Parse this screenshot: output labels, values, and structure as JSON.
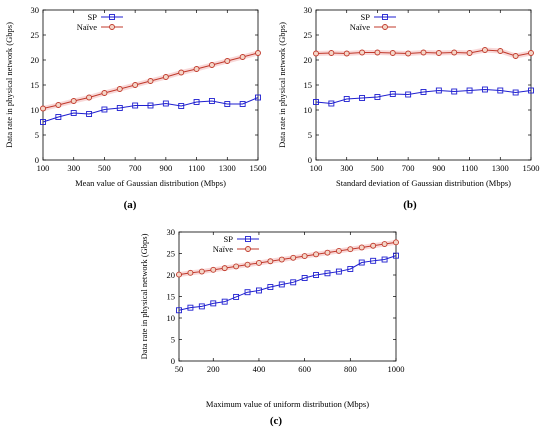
{
  "chart_data": [
    {
      "type": "line",
      "panel_label": "(a)",
      "xlabel": "Mean value of Gaussian distribution (Mbps)",
      "ylabel": "Data rate in physical network (Gbps)",
      "xlim": [
        100,
        1500
      ],
      "ylim": [
        0,
        30
      ],
      "x_ticks": [
        "100",
        "300",
        "500",
        "700",
        "900",
        "1100",
        "1300",
        "1500"
      ],
      "y_ticks": [
        "0",
        "5",
        "10",
        "15",
        "20",
        "25",
        "30"
      ],
      "legend": "top-left",
      "grid": false,
      "x": [
        100,
        200,
        300,
        400,
        500,
        600,
        700,
        800,
        900,
        1000,
        1100,
        1200,
        1300,
        1400,
        1500
      ],
      "series": [
        {
          "name": "SP",
          "color": "#1f1fd0",
          "marker": "square",
          "values": [
            7.6,
            8.6,
            9.4,
            9.2,
            10.1,
            10.4,
            10.9,
            10.9,
            11.3,
            10.8,
            11.6,
            11.8,
            11.2,
            11.2,
            12.5
          ]
        },
        {
          "name": "Naïve",
          "color": "#c0392b",
          "marker": "circle",
          "values": [
            10.3,
            11.0,
            11.8,
            12.5,
            13.4,
            14.2,
            15.0,
            15.8,
            16.6,
            17.5,
            18.2,
            19.0,
            19.8,
            20.6,
            21.4
          ]
        }
      ]
    },
    {
      "type": "line",
      "panel_label": "(b)",
      "xlabel": "Standard deviation of Gaussian distribution (Mbps)",
      "ylabel": "Data rate in physical network (Gbps)",
      "xlim": [
        100,
        1500
      ],
      "ylim": [
        0,
        30
      ],
      "x_ticks": [
        "100",
        "300",
        "500",
        "700",
        "900",
        "1100",
        "1300",
        "1500"
      ],
      "y_ticks": [
        "0",
        "5",
        "10",
        "15",
        "20",
        "25",
        "30"
      ],
      "legend": "top-left",
      "grid": false,
      "x": [
        100,
        200,
        300,
        400,
        500,
        600,
        700,
        800,
        900,
        1000,
        1100,
        1200,
        1300,
        1400,
        1500
      ],
      "series": [
        {
          "name": "SP",
          "color": "#1f1fd0",
          "marker": "square",
          "values": [
            11.6,
            11.3,
            12.2,
            12.4,
            12.6,
            13.2,
            13.1,
            13.6,
            13.9,
            13.7,
            13.9,
            14.1,
            13.9,
            13.5,
            13.9
          ]
        },
        {
          "name": "Naïve",
          "color": "#c0392b",
          "marker": "circle",
          "values": [
            21.3,
            21.4,
            21.3,
            21.5,
            21.5,
            21.4,
            21.3,
            21.5,
            21.4,
            21.5,
            21.4,
            22.0,
            21.8,
            20.8,
            21.4
          ]
        }
      ]
    },
    {
      "type": "line",
      "panel_label": "(c)",
      "xlabel": "Maximum value of uniform distribution (Mbps)",
      "ylabel": "Data rate in physical network (Gbps)",
      "xlim": [
        50,
        1000
      ],
      "ylim": [
        0,
        30
      ],
      "x_ticks": [
        "50",
        "200",
        "400",
        "600",
        "800",
        "1000"
      ],
      "x_tick_values": [
        50,
        200,
        400,
        600,
        800,
        1000
      ],
      "y_ticks": [
        "0",
        "5",
        "10",
        "15",
        "20",
        "25",
        "30"
      ],
      "legend": "top-left",
      "grid": false,
      "x": [
        50,
        100,
        150,
        200,
        250,
        300,
        350,
        400,
        450,
        500,
        550,
        600,
        650,
        700,
        750,
        800,
        850,
        900,
        950,
        1000
      ],
      "series": [
        {
          "name": "SP",
          "color": "#1f1fd0",
          "marker": "square",
          "values": [
            11.8,
            12.4,
            12.7,
            13.4,
            13.8,
            14.9,
            16.0,
            16.4,
            17.2,
            17.8,
            18.3,
            19.3,
            20.0,
            20.4,
            20.8,
            21.4,
            22.9,
            23.3,
            23.6,
            24.5
          ]
        },
        {
          "name": "Naïve",
          "color": "#c0392b",
          "marker": "circle",
          "values": [
            20.1,
            20.5,
            20.8,
            21.2,
            21.6,
            22.0,
            22.4,
            22.8,
            23.2,
            23.6,
            24.0,
            24.4,
            24.8,
            25.2,
            25.6,
            26.0,
            26.4,
            26.8,
            27.2,
            27.6
          ]
        }
      ]
    }
  ]
}
